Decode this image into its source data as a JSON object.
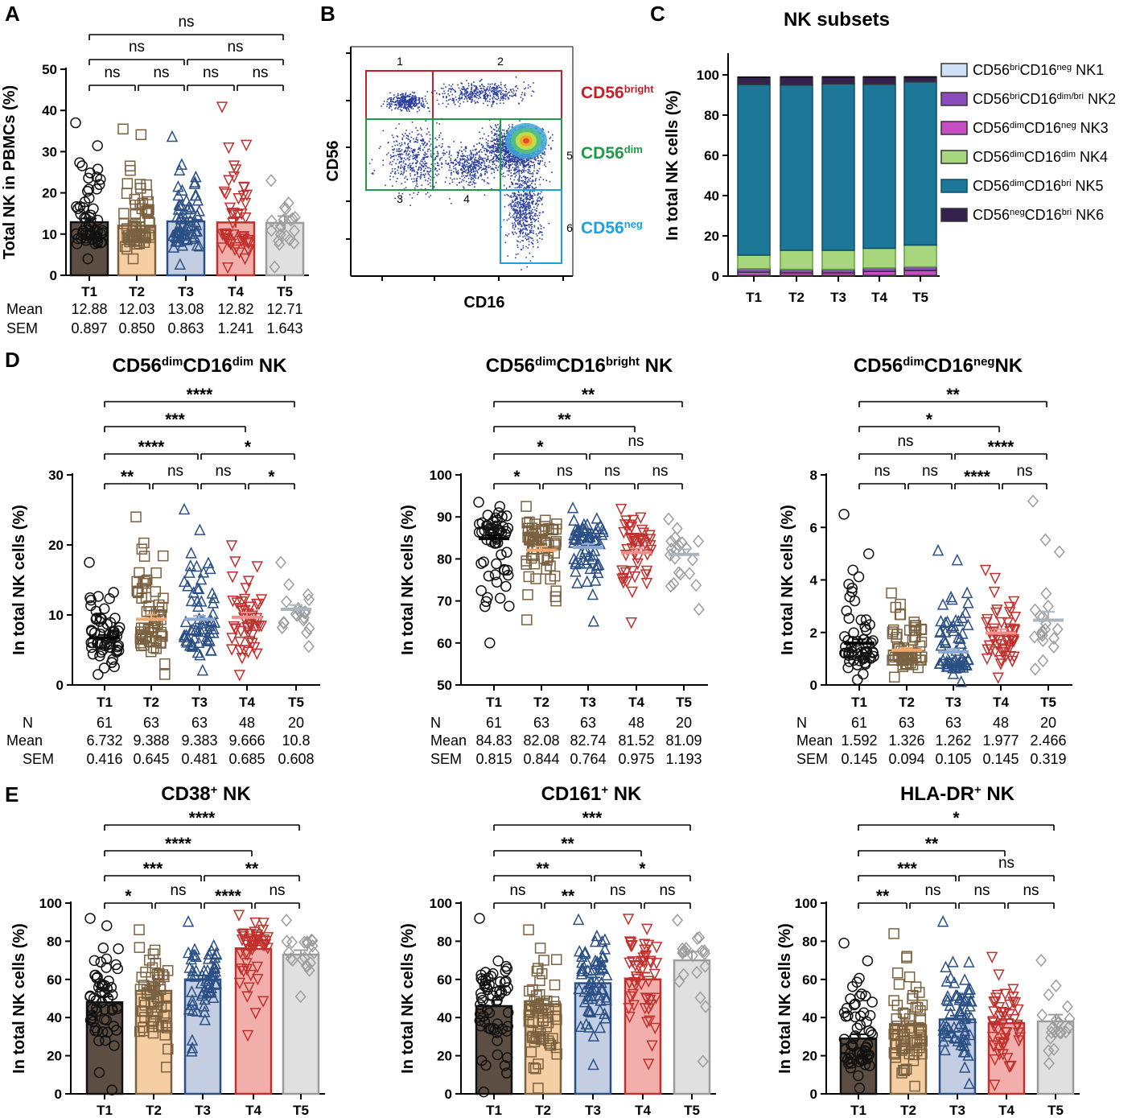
{
  "colors": {
    "T1": "#5d4e43",
    "T2": "#f5cfa3",
    "T3": "#c4cee2",
    "T4": "#f2aeaa",
    "T5": "#e0e0e0",
    "T1m": "#111111",
    "T2m": "#7a6140",
    "T3m": "#2a4f85",
    "T4m": "#c0302d",
    "T5m": "#9c9c9c",
    "T2line": "#f0a86e",
    "T3line": "#8ea9cf",
    "T5line": "#aab4bd",
    "bright": "#c42029",
    "dim": "#1e9a47",
    "neg": "#1aa3df",
    "NK1": "#cfe0f5",
    "NK2": "#8a4dbb",
    "NK3": "#c74fc4",
    "NK4": "#a7d67c",
    "NK5": "#1c7799",
    "NK6": "#34214d"
  },
  "stat_labels": {
    "n": "N",
    "mean": "Mean",
    "sem": "SEM"
  },
  "panelA": {
    "letter": "A",
    "chart_data": {
      "type": "bar",
      "categories": [
        "T1",
        "T2",
        "T3",
        "T4",
        "T5"
      ],
      "values": [
        12.88,
        12.03,
        13.08,
        12.82,
        12.71
      ],
      "sem": [
        0.897,
        0.85,
        0.863,
        1.241,
        1.643
      ],
      "ylabel": "Total NK in PBMCs (%)",
      "ylim": [
        0,
        50
      ],
      "yticks": [
        "0",
        "10",
        "20",
        "30",
        "40",
        "50"
      ],
      "brackets": [
        {
          "from": "T1",
          "to": "T2",
          "label": "ns"
        },
        {
          "from": "T2",
          "to": "T3",
          "label": "ns"
        },
        {
          "from": "T3",
          "to": "T4",
          "label": "ns"
        },
        {
          "from": "T4",
          "to": "T5",
          "label": "ns"
        },
        {
          "from": "T1",
          "to": "T3",
          "label": "ns"
        },
        {
          "from": "T3",
          "to": "T5",
          "label": "ns"
        },
        {
          "from": "T1",
          "to": "T5",
          "label": "ns"
        }
      ],
      "mean_text": [
        "12.88",
        "12.03",
        "13.08",
        "12.82",
        "12.71"
      ],
      "sem_text": [
        "0.897",
        "0.850",
        "0.863",
        "1.241",
        "1.643"
      ]
    }
  },
  "panelB": {
    "letter": "B",
    "xlabel": "CD16",
    "ylabel": "CD56",
    "gate_numbers": [
      "1",
      "2",
      "3",
      "4",
      "5",
      "6"
    ],
    "labels": [
      {
        "base": "CD56",
        "sup": "bright"
      },
      {
        "base": "CD56",
        "sup": "dim"
      },
      {
        "base": "CD56",
        "sup": "neg"
      }
    ]
  },
  "panelC": {
    "letter": "C",
    "chart_data": {
      "type": "bar",
      "stacked": true,
      "title": "NK subsets",
      "ylabel": "In total NK cells (%)",
      "categories": [
        "T1",
        "T2",
        "T3",
        "T4",
        "T5"
      ],
      "ylim": [
        0,
        100
      ],
      "yticks": [
        "0",
        "20",
        "40",
        "60",
        "80",
        "100"
      ],
      "series": [
        {
          "key": "NK1",
          "name": "CD56briCD16neg NK1",
          "values": [
            0.3,
            0.3,
            0.3,
            0.3,
            0.3
          ]
        },
        {
          "key": "NK3",
          "name": "CD56dimCD16neg NK3",
          "values": [
            1.6,
            1.3,
            1.3,
            2.0,
            2.5
          ]
        },
        {
          "key": "NK2",
          "name": "CD56briCD16dim/bri NK2",
          "values": [
            1.8,
            1.8,
            1.8,
            1.8,
            1.8
          ]
        },
        {
          "key": "NK4",
          "name": "CD56dimCD16dim NK4",
          "values": [
            6.7,
            9.4,
            9.4,
            9.7,
            10.8
          ]
        },
        {
          "key": "NK5",
          "name": "CD56dimCD16bri NK5",
          "values": [
            84.8,
            82.1,
            82.7,
            81.5,
            81.1
          ]
        },
        {
          "key": "NK6",
          "name": "CD56negCD16bri NK6",
          "values": [
            3.7,
            4.1,
            3.5,
            3.7,
            2.5
          ]
        }
      ],
      "legend": [
        {
          "key": "NK1",
          "base1": "CD56",
          "sup1": "bri",
          "mid": "CD16",
          "sup2": "neg",
          "tail": " NK1"
        },
        {
          "key": "NK2",
          "base1": "CD56",
          "sup1": "bri",
          "mid": "CD16",
          "sup2": "dim/bri",
          "tail": " NK2"
        },
        {
          "key": "NK3",
          "base1": "CD56",
          "sup1": "dim",
          "mid": "CD16",
          "sup2": "neg",
          "tail": " NK3"
        },
        {
          "key": "NK4",
          "base1": "CD56",
          "sup1": "dim",
          "mid": "CD16",
          "sup2": "dim",
          "tail": " NK4"
        },
        {
          "key": "NK5",
          "base1": "CD56",
          "sup1": "dim",
          "mid": "CD16",
          "sup2": "bri",
          "tail": " NK5"
        },
        {
          "key": "NK6",
          "base1": "CD56",
          "sup1": "neg",
          "mid": "CD16",
          "sup2": "bri",
          "tail": " NK6"
        }
      ]
    }
  },
  "panelD": {
    "letter": "D",
    "charts": [
      {
        "type": "scatter",
        "title": {
          "base1": "CD56",
          "sup1": "dim",
          "mid": "CD16",
          "sup2": "dim",
          "tail": " NK"
        },
        "ylabel": "In total NK cells (%)",
        "ylim": [
          0,
          30
        ],
        "yticks": [
          "0",
          "10",
          "20",
          "30"
        ],
        "categories": [
          "T1",
          "T2",
          "T3",
          "T4",
          "T5"
        ],
        "means": [
          6.732,
          9.388,
          9.383,
          9.666,
          10.8
        ],
        "sem": [
          0.416,
          0.645,
          0.481,
          0.685,
          0.608
        ],
        "n": [
          61,
          63,
          63,
          48,
          20
        ],
        "dist": [
          {
            "lo": 1.5,
            "hi": 17.5,
            "c": 6.2
          },
          {
            "lo": 1.5,
            "hi": 24,
            "c": 8.5
          },
          {
            "lo": 2,
            "hi": 25,
            "c": 8.5
          },
          {
            "lo": 1.5,
            "hi": 20,
            "c": 8.5
          },
          {
            "lo": 5.5,
            "hi": 17.5,
            "c": 10.5
          }
        ],
        "brackets": [
          {
            "from": "T1",
            "to": "T2",
            "label": "**"
          },
          {
            "from": "T2",
            "to": "T3",
            "label": "ns"
          },
          {
            "from": "T3",
            "to": "T4",
            "label": "ns"
          },
          {
            "from": "T4",
            "to": "T5",
            "label": "*"
          },
          {
            "from": "T1",
            "to": "T3",
            "label": "****"
          },
          {
            "from": "T3",
            "to": "T5",
            "label": "*"
          },
          {
            "from": "T1",
            "to": "T4",
            "label": "***"
          },
          {
            "from": "T1",
            "to": "T5",
            "label": "****"
          }
        ],
        "n_text": [
          "61",
          "63",
          "63",
          "48",
          "20"
        ],
        "mean_text": [
          "6.732",
          "9.388",
          "9.383",
          "9.666",
          "10.8"
        ],
        "sem_text": [
          "0.416",
          "0.645",
          "0.481",
          "0.685",
          "0.608"
        ]
      },
      {
        "type": "scatter",
        "title": {
          "base1": "CD56",
          "sup1": "dim",
          "mid": "CD16",
          "sup2": "bright",
          "tail": " NK"
        },
        "ylabel": "In total NK cells (%)",
        "ylim": [
          50,
          100
        ],
        "yticks": [
          "50",
          "60",
          "70",
          "80",
          "90",
          "100"
        ],
        "categories": [
          "T1",
          "T2",
          "T3",
          "T4",
          "T5"
        ],
        "means": [
          84.83,
          82.08,
          82.74,
          81.52,
          81.09
        ],
        "sem": [
          0.815,
          0.844,
          0.764,
          0.975,
          1.193
        ],
        "n": [
          61,
          63,
          63,
          48,
          20
        ],
        "dist": [
          {
            "lo": 60,
            "hi": 93.5,
            "c": 86
          },
          {
            "lo": 65.5,
            "hi": 92.5,
            "c": 83
          },
          {
            "lo": 65,
            "hi": 92,
            "c": 84
          },
          {
            "lo": 65,
            "hi": 92,
            "c": 83
          },
          {
            "lo": 68,
            "hi": 89.5,
            "c": 82
          }
        ],
        "brackets": [
          {
            "from": "T1",
            "to": "T2",
            "label": "*"
          },
          {
            "from": "T2",
            "to": "T3",
            "label": "ns"
          },
          {
            "from": "T3",
            "to": "T4",
            "label": "ns"
          },
          {
            "from": "T4",
            "to": "T5",
            "label": "ns"
          },
          {
            "from": "T1",
            "to": "T3",
            "label": "*"
          },
          {
            "from": "T3",
            "to": "T5",
            "label": "ns"
          },
          {
            "from": "T1",
            "to": "T4",
            "label": "**"
          },
          {
            "from": "T1",
            "to": "T5",
            "label": "**"
          }
        ],
        "n_text": [
          "61",
          "63",
          "63",
          "48",
          "20"
        ],
        "mean_text": [
          "84.83",
          "82.08",
          "82.74",
          "81.52",
          "81.09"
        ],
        "sem_text": [
          "0.815",
          "0.844",
          "0.764",
          "0.975",
          "1.193"
        ]
      },
      {
        "type": "scatter",
        "title": {
          "base1": "CD56",
          "sup1": "dim",
          "mid": "CD16",
          "sup2": "neg",
          "tail": "NK"
        },
        "ylabel": "In total NK cells (%)",
        "ylim": [
          0,
          8
        ],
        "yticks": [
          "0",
          "2",
          "4",
          "6",
          "8"
        ],
        "categories": [
          "T1",
          "T2",
          "T3",
          "T4",
          "T5"
        ],
        "means": [
          1.592,
          1.326,
          1.262,
          1.977,
          2.466
        ],
        "sem": [
          0.145,
          0.094,
          0.105,
          0.145,
          0.319
        ],
        "n": [
          61,
          63,
          63,
          48,
          20
        ],
        "dist": [
          {
            "lo": 0.2,
            "hi": 6.5,
            "c": 1.3
          },
          {
            "lo": 0.3,
            "hi": 3.5,
            "c": 1.2
          },
          {
            "lo": 0.1,
            "hi": 5.1,
            "c": 1.0
          },
          {
            "lo": 0.3,
            "hi": 4.4,
            "c": 1.8
          },
          {
            "lo": 0.6,
            "hi": 7.0,
            "c": 2.2
          }
        ],
        "brackets": [
          {
            "from": "T1",
            "to": "T2",
            "label": "ns"
          },
          {
            "from": "T2",
            "to": "T3",
            "label": "ns"
          },
          {
            "from": "T3",
            "to": "T4",
            "label": "****"
          },
          {
            "from": "T4",
            "to": "T5",
            "label": "ns"
          },
          {
            "from": "T1",
            "to": "T3",
            "label": "ns"
          },
          {
            "from": "T3",
            "to": "T5",
            "label": "****"
          },
          {
            "from": "T1",
            "to": "T4",
            "label": "*"
          },
          {
            "from": "T1",
            "to": "T5",
            "label": "**"
          }
        ],
        "n_text": [
          "61",
          "63",
          "63",
          "48",
          "20"
        ],
        "mean_text": [
          "1.592",
          "1.326",
          "1.262",
          "1.977",
          "2.466"
        ],
        "sem_text": [
          "0.145",
          "0.094",
          "0.105",
          "0.145",
          "0.319"
        ]
      }
    ]
  },
  "panelE": {
    "letter": "E",
    "charts": [
      {
        "type": "bar",
        "title": {
          "base1": "CD38",
          "sup1": "+",
          "tail": " NK"
        },
        "ylabel": "In total NK cells (%)",
        "ylim": [
          0,
          100
        ],
        "yticks": [
          "0",
          "20",
          "40",
          "60",
          "80",
          "100"
        ],
        "categories": [
          "T1",
          "T2",
          "T3",
          "T4",
          "T5"
        ],
        "values": [
          48,
          54,
          60,
          76,
          73
        ],
        "sem": [
          3.0,
          2.5,
          2.0,
          1.8,
          2.3
        ],
        "dist": [
          {
            "lo": 2,
            "hi": 92,
            "c": 45
          },
          {
            "lo": 14,
            "hi": 86,
            "c": 52
          },
          {
            "lo": 22,
            "hi": 90,
            "c": 60
          },
          {
            "lo": 31,
            "hi": 94,
            "c": 78
          },
          {
            "lo": 51,
            "hi": 91,
            "c": 74
          }
        ],
        "brackets": [
          {
            "from": "T1",
            "to": "T2",
            "label": "*"
          },
          {
            "from": "T2",
            "to": "T3",
            "label": "ns"
          },
          {
            "from": "T3",
            "to": "T4",
            "label": "****"
          },
          {
            "from": "T4",
            "to": "T5",
            "label": "ns"
          },
          {
            "from": "T1",
            "to": "T3",
            "label": "***"
          },
          {
            "from": "T3",
            "to": "T5",
            "label": "**"
          },
          {
            "from": "T1",
            "to": "T4",
            "label": "****"
          },
          {
            "from": "T1",
            "to": "T5",
            "label": "****"
          }
        ]
      },
      {
        "type": "bar",
        "title": {
          "base1": "CD161",
          "sup1": "+",
          "tail": " NK"
        },
        "ylabel": "In total NK cells (%)",
        "ylim": [
          0,
          100
        ],
        "yticks": [
          "0",
          "20",
          "40",
          "60",
          "80",
          "100"
        ],
        "categories": [
          "T1",
          "T2",
          "T3",
          "T4",
          "T5"
        ],
        "values": [
          46,
          47,
          58,
          60,
          70
        ],
        "sem": [
          3.2,
          3.0,
          3.0,
          3.5,
          4.5
        ],
        "dist": [
          {
            "lo": 1,
            "hi": 92,
            "c": 45
          },
          {
            "lo": 3,
            "hi": 86,
            "c": 45
          },
          {
            "lo": 15,
            "hi": 91,
            "c": 60
          },
          {
            "lo": 16,
            "hi": 92,
            "c": 60
          },
          {
            "lo": 17,
            "hi": 91,
            "c": 72
          }
        ],
        "brackets": [
          {
            "from": "T1",
            "to": "T2",
            "label": "ns"
          },
          {
            "from": "T2",
            "to": "T3",
            "label": "**"
          },
          {
            "from": "T3",
            "to": "T4",
            "label": "ns"
          },
          {
            "from": "T4",
            "to": "T5",
            "label": "ns"
          },
          {
            "from": "T1",
            "to": "T3",
            "label": "**"
          },
          {
            "from": "T3",
            "to": "T5",
            "label": "*"
          },
          {
            "from": "T1",
            "to": "T4",
            "label": "**"
          },
          {
            "from": "T1",
            "to": "T5",
            "label": "***"
          }
        ]
      },
      {
        "type": "bar",
        "title": {
          "base1": "HLA-DR",
          "sup1": "+",
          "tail": " NK"
        },
        "ylabel": "In total NK cells (%)",
        "ylim": [
          0,
          100
        ],
        "yticks": [
          "0",
          "20",
          "40",
          "60",
          "80",
          "100"
        ],
        "categories": [
          "T1",
          "T2",
          "T3",
          "T4",
          "T5"
        ],
        "values": [
          29,
          36,
          39,
          37,
          38
        ],
        "sem": [
          2.2,
          2.2,
          2.0,
          2.2,
          3.5
        ],
        "dist": [
          {
            "lo": 3,
            "hi": 79,
            "c": 25
          },
          {
            "lo": 4,
            "hi": 84,
            "c": 32
          },
          {
            "lo": 5,
            "hi": 90,
            "c": 37
          },
          {
            "lo": 5,
            "hi": 72,
            "c": 35
          },
          {
            "lo": 16,
            "hi": 70,
            "c": 35
          }
        ],
        "brackets": [
          {
            "from": "T1",
            "to": "T2",
            "label": "**"
          },
          {
            "from": "T2",
            "to": "T3",
            "label": "ns"
          },
          {
            "from": "T3",
            "to": "T4",
            "label": "ns"
          },
          {
            "from": "T4",
            "to": "T5",
            "label": "ns"
          },
          {
            "from": "T1",
            "to": "T3",
            "label": "***"
          },
          {
            "from": "T3",
            "to": "T5",
            "label": "ns"
          },
          {
            "from": "T1",
            "to": "T4",
            "label": "**"
          },
          {
            "from": "T1",
            "to": "T5",
            "label": "*"
          }
        ]
      }
    ]
  }
}
